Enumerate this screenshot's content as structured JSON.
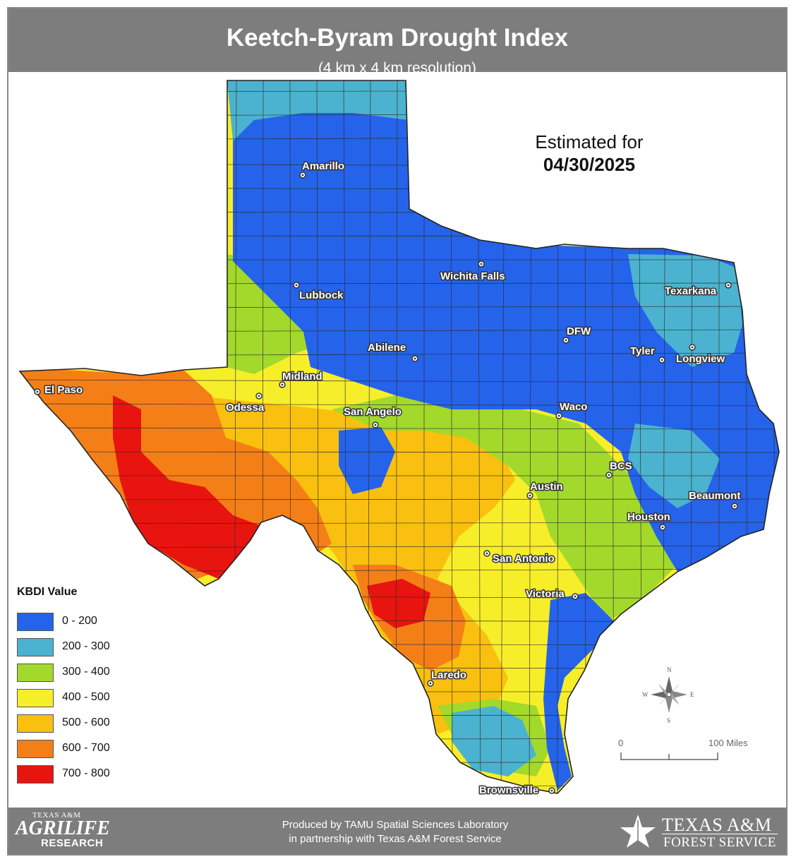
{
  "header": {
    "title": "Keetch-Byram Drought Index",
    "subtitle": "(4 km x 4 km resolution)"
  },
  "estimate": {
    "label": "Estimated for",
    "date": "04/30/2025"
  },
  "legend": {
    "title": "KBDI Value",
    "items": [
      {
        "label": "0 - 200",
        "color": "#2563eb"
      },
      {
        "label": "200 - 300",
        "color": "#4bb3cf"
      },
      {
        "label": "300 - 400",
        "color": "#a3d92b"
      },
      {
        "label": "400 - 500",
        "color": "#f7ee2a"
      },
      {
        "label": "500 - 600",
        "color": "#f9c00f"
      },
      {
        "label": "600 - 700",
        "color": "#f57f17"
      },
      {
        "label": "700 - 800",
        "color": "#e8140f"
      }
    ]
  },
  "cities": [
    {
      "name": "Amarillo"
    },
    {
      "name": "Wichita Falls"
    },
    {
      "name": "Lubbock"
    },
    {
      "name": "Texarkana"
    },
    {
      "name": "DFW"
    },
    {
      "name": "Abilene"
    },
    {
      "name": "Tyler"
    },
    {
      "name": "Longview"
    },
    {
      "name": "Midland"
    },
    {
      "name": "El Paso"
    },
    {
      "name": "Odessa"
    },
    {
      "name": "San Angelo"
    },
    {
      "name": "Waco"
    },
    {
      "name": "BCS"
    },
    {
      "name": "Austin"
    },
    {
      "name": "Beaumont"
    },
    {
      "name": "Houston"
    },
    {
      "name": "San Antonio"
    },
    {
      "name": "Victoria"
    },
    {
      "name": "Laredo"
    },
    {
      "name": "Brownsville"
    }
  ],
  "scale_bar": {
    "start": "0",
    "end": "100 Miles"
  },
  "compass": {
    "n": "N",
    "s": "S",
    "e": "E",
    "w": "W"
  },
  "footer": {
    "credit_line1": "Produced by TAMU Spatial Sciences Laboratory",
    "credit_line2": "in partnership with Texas A&M Forest Service",
    "logo_left": {
      "line1": "TEXAS A&M",
      "line2": "AGRILIFE",
      "line3": "RESEARCH"
    },
    "logo_right": {
      "line1": "TEXAS A&M",
      "line2": "FOREST SERVICE"
    }
  },
  "colors": {
    "header_bg": "#7d7d7d",
    "frame": "#8a8a8a",
    "county_lines": "#2a2a2a"
  }
}
